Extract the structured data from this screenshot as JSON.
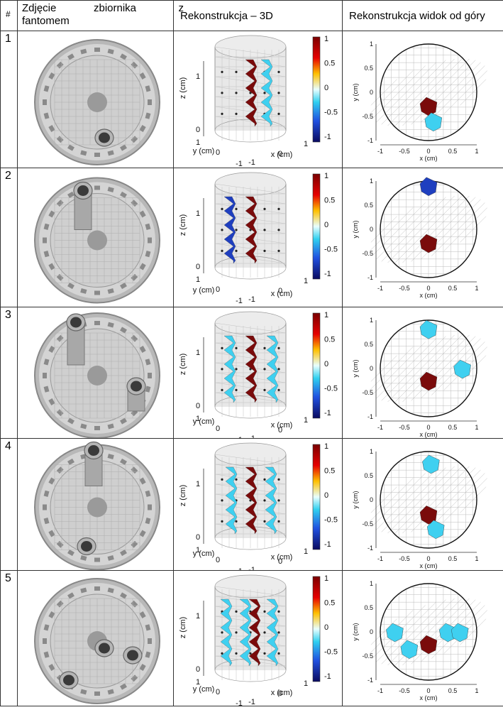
{
  "headers": {
    "num": "#",
    "photo_words": [
      "Zdjęcie",
      "zbiornika",
      "z",
      "fantomem"
    ],
    "recon_3d": "Rekonstrukcja – 3D",
    "recon_top": "Rekonstrukcja widok od góry"
  },
  "rows": [
    {
      "id": "1",
      "pipes": 1,
      "colorbar_ticks": [
        "1",
        "0.5",
        "0",
        "-0.5",
        "-1"
      ]
    },
    {
      "id": "2",
      "pipes": 1,
      "colorbar_ticks": [
        "1",
        "0.5",
        "0",
        "-0.5",
        "-1"
      ]
    },
    {
      "id": "3",
      "pipes": 2,
      "colorbar_ticks": [
        "1",
        "0.5",
        "0",
        "-0.5",
        "-1"
      ]
    },
    {
      "id": "4",
      "pipes": 2,
      "colorbar_ticks": [
        "1",
        "0.5",
        "0",
        "-0.5",
        "-1"
      ]
    },
    {
      "id": "5",
      "pipes": 3,
      "colorbar_ticks": [
        "1",
        "0.5",
        "0",
        "-0.5",
        "-1"
      ]
    }
  ],
  "axes_3d": {
    "z_label": "z (cm)",
    "y_label": "y (cm)",
    "x_label": "x (cm)",
    "z_ticks": [
      "1",
      "0"
    ],
    "y_ticks": [
      "1",
      "0",
      "-1"
    ],
    "x_ticks": [
      "1",
      "0",
      "-1"
    ]
  },
  "axes_top": {
    "y_label": "y (cm)",
    "x_label": "x (cm)",
    "y_ticks": [
      "1",
      "0.5",
      "0",
      "-0.5",
      "-1"
    ],
    "x_ticks": [
      "-1",
      "-0.5",
      "0",
      "0.5",
      "1"
    ]
  },
  "colors": {
    "positive": "#7a0b0b",
    "negative_light": "#3fd0f0",
    "negative_dark": "#1f3fbf",
    "mesh": "#9a9a9a"
  }
}
